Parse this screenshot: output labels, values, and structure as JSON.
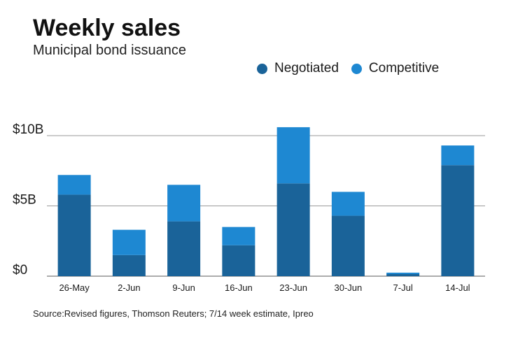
{
  "chart_data": {
    "type": "bar",
    "stacked": true,
    "title": "Weekly sales",
    "subtitle": "Municipal bond issuance",
    "categories": [
      "26-May",
      "2-Jun",
      "9-Jun",
      "16-Jun",
      "23-Jun",
      "30-Jun",
      "7-Jul",
      "14-Jul"
    ],
    "series": [
      {
        "name": "Negotiated",
        "color": "#1a6399",
        "values": [
          5.8,
          1.5,
          3.9,
          2.2,
          6.6,
          4.3,
          0.15,
          7.9
        ]
      },
      {
        "name": "Competitive",
        "color": "#1e88d2",
        "values": [
          1.4,
          1.8,
          2.6,
          1.3,
          4.0,
          1.7,
          0.1,
          1.4
        ]
      }
    ],
    "y_ticks": [
      {
        "value": 0,
        "label": "$0"
      },
      {
        "value": 5,
        "label": "$5B"
      },
      {
        "value": 10,
        "label": "$10B"
      }
    ],
    "ylim": [
      0,
      10
    ],
    "unit": "billions of dollars",
    "grid": true,
    "legend_position": "top-right",
    "source": "Source:Revised figures, Thomson Reuters; 7/14 week estimate, Ipreo"
  }
}
